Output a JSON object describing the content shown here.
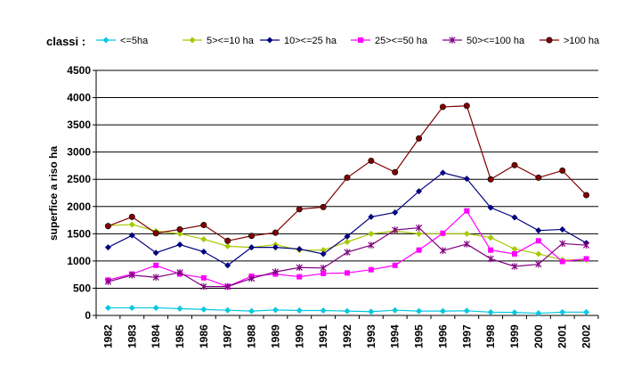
{
  "chart_data": {
    "type": "line",
    "legend_title": "classi :",
    "legend_placement": "top",
    "ylabel": "superfice a riso ha",
    "xlabel": "",
    "ylim": [
      0,
      4500
    ],
    "ytick_step": 500,
    "grid": "horizontal",
    "x": [
      "1982",
      "1983",
      "1984",
      "1985",
      "1986",
      "1987",
      "1988",
      "1989",
      "1990",
      "1991",
      "1992",
      "1993",
      "1994",
      "1995",
      "1996",
      "1997",
      "1998",
      "1999",
      "2000",
      "2001",
      "2002"
    ],
    "series": [
      {
        "name": "<=5ha",
        "color": "#00c8e0",
        "marker": "diamond",
        "values": [
          140,
          140,
          140,
          125,
          110,
          95,
          80,
          100,
          90,
          90,
          80,
          70,
          95,
          80,
          80,
          85,
          60,
          55,
          40,
          60,
          60
        ]
      },
      {
        "name": "5><=10 ha",
        "color": "#a8c800",
        "marker": "diamond",
        "values": [
          1650,
          1670,
          1550,
          1500,
          1400,
          1270,
          1250,
          1300,
          1200,
          1200,
          1350,
          1500,
          1550,
          1500,
          1500,
          1500,
          1430,
          1220,
          1130,
          1020,
          1020
        ]
      },
      {
        "name": "10><=25 ha",
        "color": "#000080",
        "marker": "diamond",
        "values": [
          1250,
          1470,
          1150,
          1300,
          1170,
          920,
          1250,
          1250,
          1220,
          1130,
          1450,
          1810,
          1890,
          2280,
          2620,
          2510,
          1980,
          1800,
          1560,
          1580,
          1330
        ]
      },
      {
        "name": "25><=50 ha",
        "color": "#ff00ff",
        "marker": "square",
        "values": [
          650,
          760,
          920,
          760,
          690,
          530,
          720,
          760,
          710,
          770,
          780,
          840,
          920,
          1200,
          1510,
          1920,
          1200,
          1130,
          1370,
          990,
          1040
        ]
      },
      {
        "name": "50><=100 ha",
        "color": "#800080",
        "marker": "star",
        "values": [
          620,
          740,
          700,
          790,
          530,
          530,
          680,
          800,
          880,
          870,
          1160,
          1290,
          1570,
          1610,
          1190,
          1310,
          1040,
          900,
          940,
          1320,
          1290
        ]
      },
      {
        "name": ">100 ha",
        "color": "#800000",
        "marker": "circle",
        "values": [
          1640,
          1810,
          1510,
          1580,
          1660,
          1370,
          1460,
          1520,
          1950,
          1990,
          2530,
          2840,
          2630,
          3250,
          3830,
          3850,
          2500,
          2760,
          2530,
          2660,
          2210
        ]
      }
    ]
  }
}
